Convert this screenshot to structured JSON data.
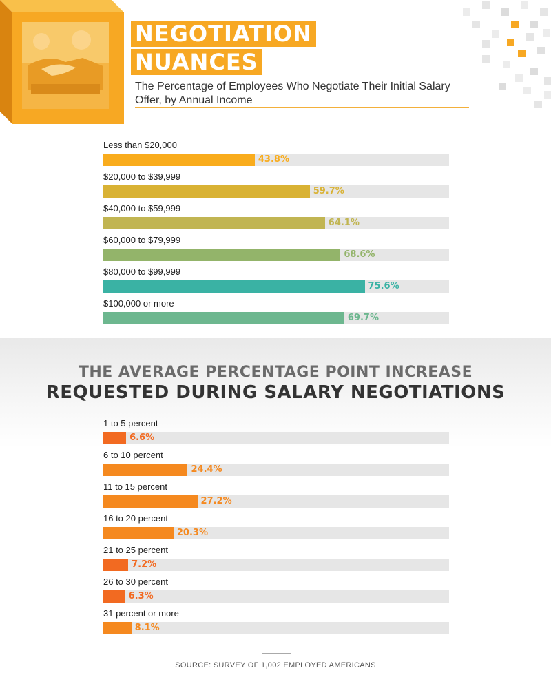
{
  "header": {
    "title_line1": "NEGOTIATION",
    "title_line2": "NUANCES",
    "subtitle": "The Percentage of Employees Who Negotiate Their Initial Salary Offer, by Annual Income"
  },
  "section2": {
    "title_line1": "THE AVERAGE PERCENTAGE POINT INCREASE",
    "title_line2": "REQUESTED DURING SALARY NEGOTIATIONS"
  },
  "source": "SOURCE: SURVEY OF 1,002 EMPLOYED AMERICANS",
  "colors": {
    "accent": "#f7a823",
    "track": "#e6e6e6",
    "income_bars": [
      "#f9ac1d",
      "#d9b234",
      "#c1b552",
      "#93b46a",
      "#3ab2a4",
      "#6db78f"
    ],
    "increase_bar": "#f5891f",
    "increase_bar_dark": "#f26a21"
  },
  "chart_data": [
    {
      "type": "bar",
      "title": "The Percentage of Employees Who Negotiate Their Initial Salary Offer, by Annual Income",
      "orientation": "horizontal",
      "categories": [
        "Less than $20,000",
        "$20,000 to $39,999",
        "$40,000 to $59,999",
        "$60,000 to $79,999",
        "$80,000 to $99,999",
        "$100,000 or more"
      ],
      "values": [
        43.8,
        59.7,
        64.1,
        68.6,
        75.6,
        69.7
      ],
      "value_labels": [
        "43.8%",
        "59.7%",
        "64.1%",
        "68.6%",
        "75.6%",
        "69.7%"
      ],
      "xlim": [
        0,
        100
      ],
      "unit": "%"
    },
    {
      "type": "bar",
      "title": "The Average Percentage Point Increase Requested During Salary Negotiations",
      "orientation": "horizontal",
      "categories": [
        "1 to 5 percent",
        "6 to 10 percent",
        "11 to 15 percent",
        "16 to 20 percent",
        "21 to 25 percent",
        "26 to 30 percent",
        "31 percent or more"
      ],
      "values": [
        6.6,
        24.4,
        27.2,
        20.3,
        7.2,
        6.3,
        8.1
      ],
      "value_labels": [
        "6.6%",
        "24.4%",
        "27.2%",
        "20.3%",
        "7.2%",
        "6.3%",
        "8.1%"
      ],
      "xlim": [
        0,
        100
      ],
      "unit": "%"
    }
  ]
}
